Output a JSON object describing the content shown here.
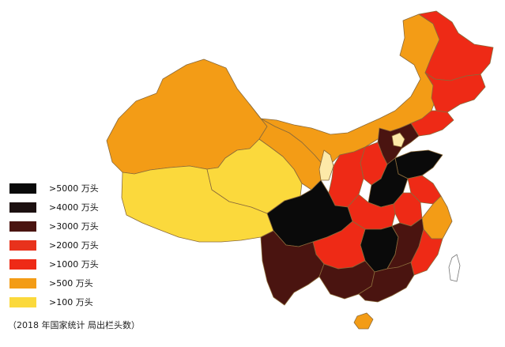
{
  "legend": {
    "items": [
      {
        "label": ">5000 万头",
        "color": "#0a0a0a"
      },
      {
        "label": ">4000 万头",
        "color": "#1c1010"
      },
      {
        "label": ">3000 万头",
        "color": "#4a1410"
      },
      {
        "label": ">2000 万头",
        "color": "#e8321c"
      },
      {
        "label": ">1000 万头",
        "color": "#ee2a16"
      },
      {
        "label": " >500 万头",
        "color": "#f39c16"
      },
      {
        "label": " >100 万头",
        "color": "#fbd93c"
      }
    ]
  },
  "source": "（2018 年国家统计 局出栏头数）",
  "colors": {
    "gt5000": "#0a0a0a",
    "gt4000": "#1c1010",
    "gt3000": "#4a1410",
    "gt2000": "#e8321c",
    "gt1000": "#ee2a16",
    "gt500": "#f39c16",
    "gt100": "#fbd93c",
    "lowest": "#fde9a8",
    "border": "#8a6a3a"
  }
}
